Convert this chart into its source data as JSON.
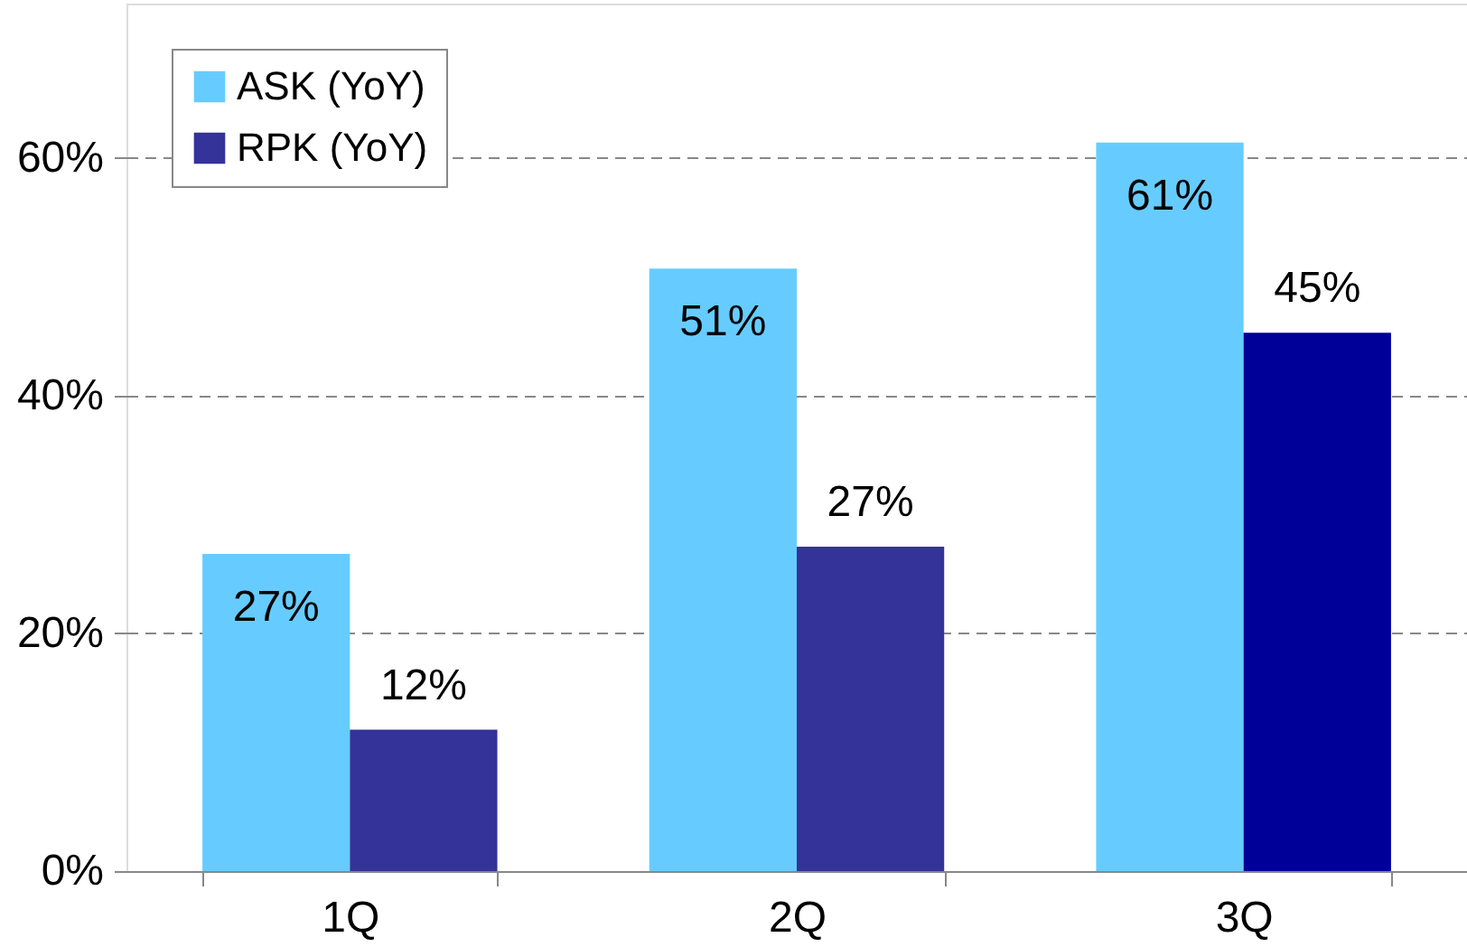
{
  "chart_data": {
    "type": "bar",
    "categories": [
      "1Q",
      "2Q",
      "3Q"
    ],
    "series": [
      {
        "name": "ASK (YoY)",
        "color": "#66ccff",
        "values": [
          26.7,
          50.7,
          61.3
        ],
        "value_labels": [
          "27%",
          "51%",
          "61%"
        ]
      },
      {
        "name": "RPK (YoY)",
        "color": "#333399",
        "colors": [
          "#333399",
          "#333399",
          "#000099"
        ],
        "values": [
          11.9,
          27.3,
          45.3
        ],
        "value_labels": [
          "12%",
          "27%",
          "45%"
        ]
      }
    ],
    "ylim": [
      0,
      73
    ],
    "yticks": [
      {
        "value": 0,
        "label": "0%"
      },
      {
        "value": 20,
        "label": "20%"
      },
      {
        "value": 40,
        "label": "40%"
      },
      {
        "value": 60,
        "label": "60%"
      }
    ],
    "grid": "y",
    "legend": "top left"
  }
}
